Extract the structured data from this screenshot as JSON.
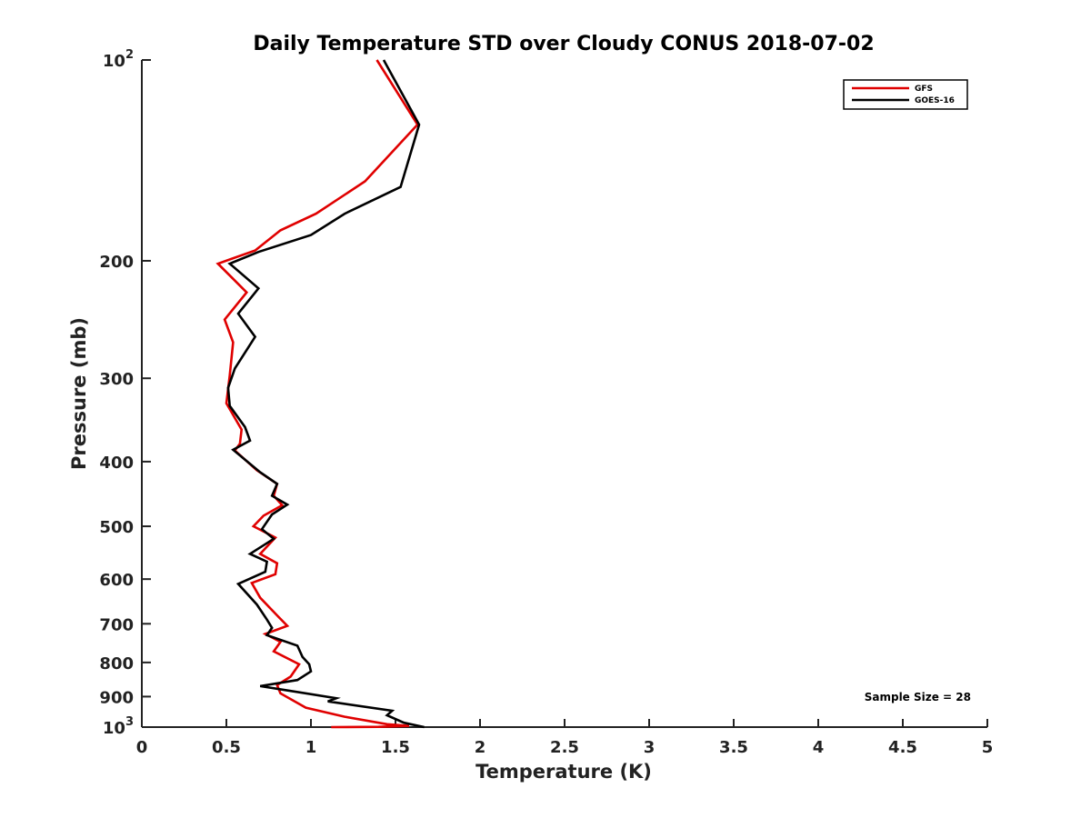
{
  "chart_data": {
    "type": "line",
    "title": "Daily Temperature STD over Cloudy CONUS 2018-07-02",
    "xlabel": "Temperature (K)",
    "ylabel": "Pressure (mb)",
    "xlim": [
      0,
      5
    ],
    "ylim": [
      100,
      1000
    ],
    "y_scale": "log",
    "y_reversed": true,
    "grid": false,
    "legend_position": "top-right",
    "x_ticks": [
      "0",
      "0.5",
      "1",
      "1.5",
      "2",
      "2.5",
      "3",
      "3.5",
      "4",
      "4.5",
      "5"
    ],
    "y_ticks": [
      {
        "value": 100,
        "base": "10",
        "exp": "2"
      },
      {
        "value": 200,
        "label": "200"
      },
      {
        "value": 300,
        "label": "300"
      },
      {
        "value": 400,
        "label": "400"
      },
      {
        "value": 500,
        "label": "500"
      },
      {
        "value": 600,
        "label": "600"
      },
      {
        "value": 700,
        "label": "700"
      },
      {
        "value": 800,
        "label": "800"
      },
      {
        "value": 900,
        "label": "900"
      },
      {
        "value": 1000,
        "base": "10",
        "exp": "3"
      }
    ],
    "annotation": "Sample Size = 28",
    "series": [
      {
        "name": "GFS",
        "color": "#e00000",
        "points": [
          [
            1.39,
            100
          ],
          [
            1.63,
            125
          ],
          [
            1.32,
            152
          ],
          [
            1.03,
            170
          ],
          [
            0.82,
            180
          ],
          [
            0.67,
            193
          ],
          [
            0.45,
            202
          ],
          [
            0.62,
            223
          ],
          [
            0.49,
            245
          ],
          [
            0.54,
            265
          ],
          [
            0.52,
            297
          ],
          [
            0.5,
            327
          ],
          [
            0.59,
            358
          ],
          [
            0.58,
            376
          ],
          [
            0.55,
            385
          ],
          [
            0.68,
            412
          ],
          [
            0.8,
            432
          ],
          [
            0.78,
            450
          ],
          [
            0.83,
            465
          ],
          [
            0.72,
            482
          ],
          [
            0.66,
            500
          ],
          [
            0.79,
            520
          ],
          [
            0.7,
            550
          ],
          [
            0.8,
            568
          ],
          [
            0.79,
            590
          ],
          [
            0.65,
            608
          ],
          [
            0.7,
            640
          ],
          [
            0.8,
            680
          ],
          [
            0.86,
            705
          ],
          [
            0.73,
            725
          ],
          [
            0.82,
            745
          ],
          [
            0.78,
            770
          ],
          [
            0.93,
            805
          ],
          [
            0.88,
            840
          ],
          [
            0.8,
            865
          ],
          [
            0.82,
            890
          ],
          [
            0.97,
            935
          ],
          [
            1.2,
            965
          ],
          [
            1.45,
            990
          ],
          [
            1.58,
            996
          ],
          [
            1.4,
            999
          ],
          [
            1.12,
            1000
          ]
        ]
      },
      {
        "name": "GOES-16",
        "color": "#000000",
        "points": [
          [
            1.43,
            100
          ],
          [
            1.64,
            125
          ],
          [
            1.53,
            155
          ],
          [
            1.2,
            170
          ],
          [
            1.0,
            183
          ],
          [
            0.69,
            194
          ],
          [
            0.52,
            202
          ],
          [
            0.69,
            220
          ],
          [
            0.57,
            240
          ],
          [
            0.67,
            260
          ],
          [
            0.55,
            290
          ],
          [
            0.51,
            310
          ],
          [
            0.52,
            330
          ],
          [
            0.61,
            355
          ],
          [
            0.64,
            372
          ],
          [
            0.54,
            384
          ],
          [
            0.7,
            415
          ],
          [
            0.8,
            432
          ],
          [
            0.77,
            450
          ],
          [
            0.86,
            464
          ],
          [
            0.77,
            480
          ],
          [
            0.71,
            505
          ],
          [
            0.78,
            522
          ],
          [
            0.64,
            550
          ],
          [
            0.74,
            565
          ],
          [
            0.73,
            585
          ],
          [
            0.57,
            610
          ],
          [
            0.68,
            655
          ],
          [
            0.74,
            690
          ],
          [
            0.77,
            710
          ],
          [
            0.74,
            728
          ],
          [
            0.92,
            755
          ],
          [
            0.95,
            785
          ],
          [
            0.99,
            805
          ],
          [
            1.0,
            825
          ],
          [
            0.92,
            850
          ],
          [
            0.7,
            868
          ],
          [
            0.85,
            880
          ],
          [
            1.15,
            905
          ],
          [
            1.1,
            915
          ],
          [
            1.48,
            945
          ],
          [
            1.45,
            960
          ],
          [
            1.55,
            985
          ],
          [
            1.67,
            1000
          ]
        ]
      }
    ]
  }
}
